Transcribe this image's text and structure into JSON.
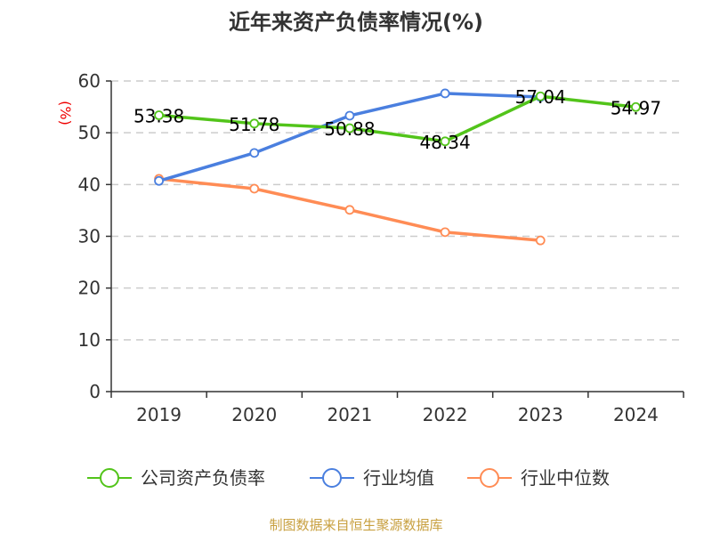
{
  "chart_data": {
    "type": "line",
    "title": "近年来资产负债率情况(%)",
    "ylabel": "(%)",
    "categories": [
      "2019",
      "2020",
      "2021",
      "2022",
      "2023",
      "2024"
    ],
    "ylim": [
      0,
      60
    ],
    "yticks": [
      0,
      10,
      20,
      30,
      40,
      50,
      60
    ],
    "grid": true,
    "legend_position": "bottom",
    "series": [
      {
        "name": "公司资产负债率",
        "color": "#52c41a",
        "values": [
          53.38,
          51.78,
          50.88,
          48.34,
          57.04,
          54.97
        ],
        "labels": [
          "53.38",
          "51.78",
          "50.88",
          "48.34",
          "57.04",
          "54.97"
        ]
      },
      {
        "name": "行业均值",
        "color": "#4a7fdf",
        "values": [
          40.7,
          46.1,
          53.3,
          57.6,
          56.9,
          null
        ]
      },
      {
        "name": "行业中位数",
        "color": "#ff8c55",
        "values": [
          41.1,
          39.2,
          35.1,
          30.8,
          29.2,
          null
        ]
      }
    ]
  },
  "source": "制图数据来自恒生聚源数据库"
}
